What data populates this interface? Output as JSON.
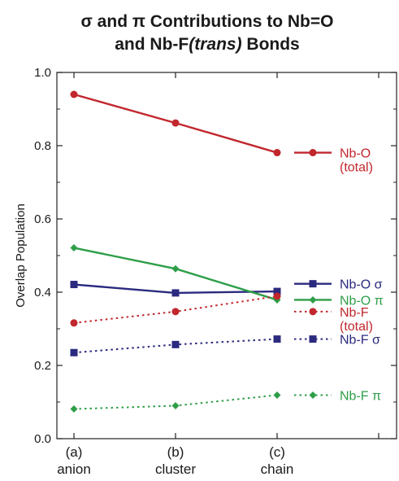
{
  "chart_data": {
    "type": "line",
    "title_line1": "σ and π Contributions to Nb=O",
    "title_line2_a": "and Nb-F",
    "title_line2_b": "(trans)",
    "title_line2_c": " Bonds",
    "ylabel": "Overlap Population",
    "ylim": [
      0,
      1.0
    ],
    "yticks": [
      "0.0",
      "0.2",
      "0.4",
      "0.6",
      "0.8",
      "1.0"
    ],
    "categories": [
      {
        "letter": "(a)",
        "name": "anion"
      },
      {
        "letter": "(b)",
        "name": "cluster"
      },
      {
        "letter": "(c)",
        "name": "chain"
      }
    ],
    "series": [
      {
        "key": "nbo_total",
        "label_lines": [
          "Nb-O",
          "(total)"
        ],
        "color": "#c1272d",
        "marker": "circle",
        "dashed": false,
        "values": [
          0.94,
          0.862,
          0.781
        ],
        "legend_y": 0.781
      },
      {
        "key": "nbo_sigma",
        "label_lines": [
          "Nb-O σ"
        ],
        "color": "#2b2a7f",
        "marker": "square",
        "dashed": false,
        "values": [
          0.421,
          0.398,
          0.402
        ],
        "legend_y": 0.423
      },
      {
        "key": "nbo_pi",
        "label_lines": [
          "Nb-O π"
        ],
        "color": "#2e9e48",
        "marker": "diamond",
        "dashed": false,
        "values": [
          0.521,
          0.464,
          0.379
        ],
        "legend_y": 0.379
      },
      {
        "key": "nbf_total",
        "label_lines": [
          "Nb-F",
          "(total)"
        ],
        "color": "#c1272d",
        "marker": "circle",
        "dashed": true,
        "values": [
          0.316,
          0.347,
          0.389
        ],
        "legend_y": 0.347
      },
      {
        "key": "nbf_sigma",
        "label_lines": [
          "Nb-F σ"
        ],
        "color": "#2b2a7f",
        "marker": "square",
        "dashed": true,
        "values": [
          0.235,
          0.257,
          0.272
        ],
        "legend_y": 0.272
      },
      {
        "key": "nbf_pi",
        "label_lines": [
          "Nb-F π"
        ],
        "color": "#2e9e48",
        "marker": "diamond",
        "dashed": true,
        "values": [
          0.081,
          0.09,
          0.119
        ],
        "legend_y": 0.119
      }
    ]
  }
}
